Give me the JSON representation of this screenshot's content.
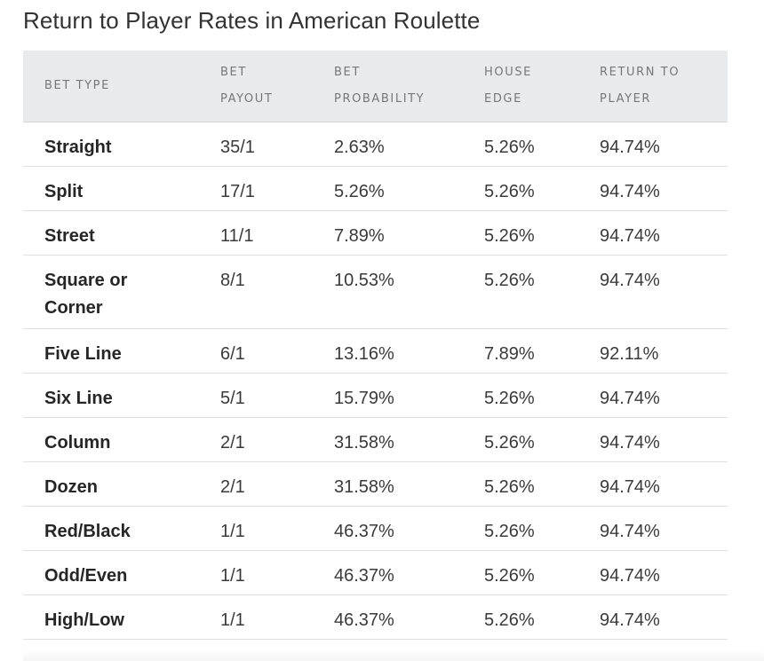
{
  "title": "Return to Player Rates in American Roulette",
  "table": {
    "headers": [
      {
        "line1": "BET TYPE",
        "line2": ""
      },
      {
        "line1": "BET",
        "line2": "PAYOUT"
      },
      {
        "line1": "BET",
        "line2": "PROBABILITY"
      },
      {
        "line1": "HOUSE",
        "line2": "EDGE"
      },
      {
        "line1": "RETURN TO",
        "line2": "PLAYER"
      }
    ],
    "rows": [
      {
        "bet_type": "Straight",
        "payout": "35/1",
        "probability": "2.63%",
        "house_edge": "5.26%",
        "rtp": "94.74%"
      },
      {
        "bet_type": "Split",
        "payout": "17/1",
        "probability": "5.26%",
        "house_edge": "5.26%",
        "rtp": "94.74%"
      },
      {
        "bet_type": "Street",
        "payout": "11/1",
        "probability": "7.89%",
        "house_edge": "5.26%",
        "rtp": "94.74%"
      },
      {
        "bet_type": "Square or Corner",
        "bet_type_line1": "Square or",
        "bet_type_line2": "Corner",
        "payout": "8/1",
        "probability": "10.53%",
        "house_edge": "5.26%",
        "rtp": "94.74%"
      },
      {
        "bet_type": "Five Line",
        "payout": "6/1",
        "probability": "13.16%",
        "house_edge": "7.89%",
        "rtp": "92.11%"
      },
      {
        "bet_type": "Six Line",
        "payout": "5/1",
        "probability": "15.79%",
        "house_edge": "5.26%",
        "rtp": "94.74%"
      },
      {
        "bet_type": "Column",
        "payout": "2/1",
        "probability": "31.58%",
        "house_edge": "5.26%",
        "rtp": "94.74%"
      },
      {
        "bet_type": "Dozen",
        "payout": "2/1",
        "probability": "31.58%",
        "house_edge": "5.26%",
        "rtp": "94.74%"
      },
      {
        "bet_type": "Red/Black",
        "payout": "1/1",
        "probability": "46.37%",
        "house_edge": "5.26%",
        "rtp": "94.74%"
      },
      {
        "bet_type": "Odd/Even",
        "payout": "1/1",
        "probability": "46.37%",
        "house_edge": "5.26%",
        "rtp": "94.74%"
      },
      {
        "bet_type": "High/Low",
        "payout": "1/1",
        "probability": "46.37%",
        "house_edge": "5.26%",
        "rtp": "94.74%"
      }
    ]
  }
}
